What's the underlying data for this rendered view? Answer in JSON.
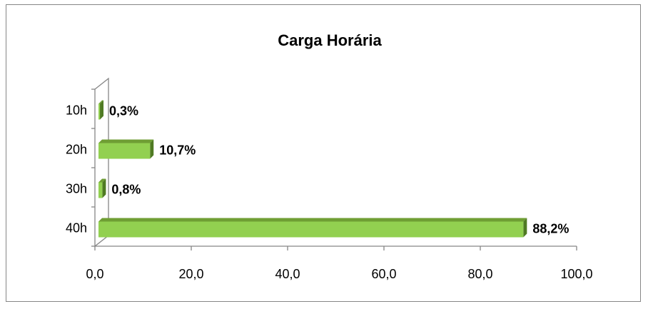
{
  "chart_data": {
    "type": "bar",
    "orientation": "horizontal",
    "title": "Carga Horária",
    "categories": [
      "10h",
      "20h",
      "30h",
      "40h"
    ],
    "values": [
      0.3,
      10.7,
      0.8,
      88.2
    ],
    "value_labels": [
      "0,3%",
      "10,7%",
      "0,8%",
      "88,2%"
    ],
    "color": "#92d050",
    "xlim": [
      0,
      100
    ],
    "xticks": [
      {
        "value": 0,
        "label": "0,0"
      },
      {
        "value": 20,
        "label": "20,0"
      },
      {
        "value": 40,
        "label": "40,0"
      },
      {
        "value": 60,
        "label": "60,0"
      },
      {
        "value": 80,
        "label": "80,0"
      },
      {
        "value": 100,
        "label": "100,0"
      }
    ],
    "grid": false
  }
}
